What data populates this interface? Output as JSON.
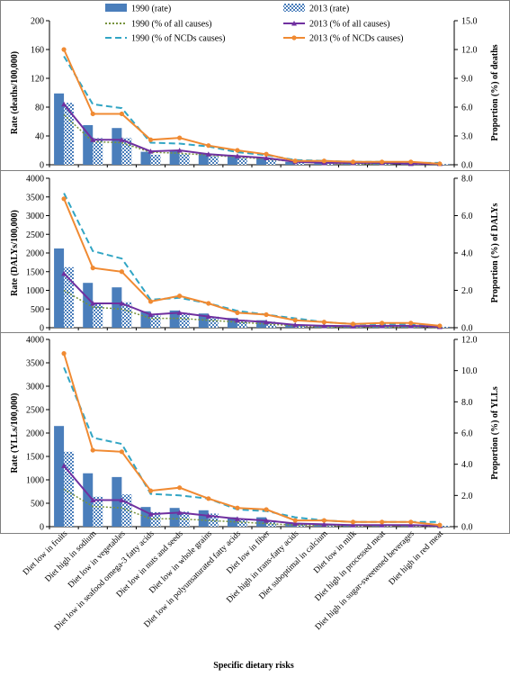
{
  "chart_data": {
    "type": "bar+line",
    "x_title": "Specific dietary risks",
    "categories": [
      "Diet low in fruits",
      "Diet high in sodium",
      "Diet low in vegetables",
      "Diet low in seafood omega-3 fatty acids",
      "Diet low in nuts and seeds",
      "Diet low in whole grains",
      "Diet low in polyunsaturated fatty acids",
      "Diet low in fiber",
      "Diet high in trans-fatty acids",
      "Diet suboptimal in calcium",
      "Diet low in milk",
      "Diet high in processed meat",
      "Diet high in sugar-sweetened beverages",
      "Diet high in red meat"
    ],
    "legend": {
      "rate_1990": "1990 (rate)",
      "rate_2013": "2013 (rate)",
      "all_1990": "1990 (% of all causes)",
      "all_2013": "2013 (% of all causes)",
      "ncd_1990": "1990 (% of NCDs causes)",
      "ncd_2013": "2013 (% of NCDs causes)"
    },
    "colors": {
      "bar_1990": "#4a7ebb",
      "bar_2013": "#4a7ebb",
      "all_1990": "#77933c",
      "all_2013": "#7030a0",
      "ncd_1990": "#31a5c4",
      "ncd_2013": "#f08a32"
    },
    "panels": [
      {
        "name": "deaths",
        "ylabel_left": "Rate (deaths/100,000)",
        "ylabel_right": "Proportion (%) of deaths",
        "ylim_left": [
          0,
          200
        ],
        "ylim_right": [
          0,
          15
        ],
        "yticks_left": [
          "0",
          "40",
          "80",
          "120",
          "160",
          "200"
        ],
        "yticks_right": [
          "0.0",
          "3.0",
          "6.0",
          "9.0",
          "12.0",
          "15.0"
        ],
        "rate_1990": [
          99,
          55,
          51,
          18,
          19,
          16,
          12,
          10,
          4,
          3,
          2,
          2,
          2,
          1
        ],
        "rate_2013": [
          86,
          37,
          37,
          14,
          15,
          12,
          10,
          8,
          3,
          3,
          2,
          2,
          2,
          1
        ],
        "all_1990": [
          5.2,
          2.4,
          2.3,
          1.3,
          1.2,
          1.0,
          0.8,
          0.6,
          0.3,
          0.2,
          0.1,
          0.1,
          0.1,
          0.1
        ],
        "all_2013": [
          6.3,
          2.6,
          2.6,
          1.4,
          1.5,
          1.1,
          0.9,
          0.7,
          0.3,
          0.2,
          0.2,
          0.2,
          0.1,
          0.1
        ],
        "ncd_1990": [
          11.3,
          6.3,
          5.9,
          2.3,
          2.2,
          1.9,
          1.3,
          1.0,
          0.5,
          0.4,
          0.3,
          0.3,
          0.2,
          0.2
        ],
        "ncd_2013": [
          12.0,
          5.3,
          5.3,
          2.6,
          2.8,
          2.0,
          1.5,
          1.1,
          0.4,
          0.4,
          0.3,
          0.3,
          0.3,
          0.1
        ]
      },
      {
        "name": "dalys",
        "ylabel_left": "Rate (DALYs/100,000)",
        "ylabel_right": "Proportion (%) of DALYs",
        "ylim_left": [
          0,
          4000
        ],
        "ylim_right": [
          0,
          8
        ],
        "yticks_left": [
          "0",
          "500",
          "1000",
          "1500",
          "2000",
          "2500",
          "3000",
          "3500",
          "4000"
        ],
        "yticks_right": [
          "0.0",
          "2.0",
          "4.0",
          "6.0",
          "8.0"
        ],
        "rate_1990": [
          2120,
          1200,
          1080,
          440,
          460,
          380,
          260,
          200,
          100,
          60,
          40,
          50,
          50,
          25
        ],
        "rate_2013": [
          1620,
          660,
          680,
          330,
          400,
          300,
          210,
          160,
          80,
          60,
          40,
          50,
          50,
          25
        ],
        "all_1990": [
          2.0,
          1.1,
          1.0,
          0.5,
          0.5,
          0.4,
          0.3,
          0.2,
          0.1,
          0.05,
          0.05,
          0.05,
          0.05,
          0.03
        ],
        "all_2013": [
          2.9,
          1.3,
          1.3,
          0.7,
          0.8,
          0.6,
          0.4,
          0.3,
          0.15,
          0.1,
          0.08,
          0.1,
          0.1,
          0.05
        ],
        "ncd_1990": [
          7.2,
          4.1,
          3.7,
          1.5,
          1.6,
          1.3,
          0.9,
          0.7,
          0.5,
          0.3,
          0.2,
          0.2,
          0.2,
          0.05
        ],
        "ncd_2013": [
          6.9,
          3.2,
          3.0,
          1.4,
          1.7,
          1.3,
          0.8,
          0.7,
          0.4,
          0.3,
          0.2,
          0.25,
          0.25,
          0.1
        ]
      },
      {
        "name": "ylls",
        "ylabel_left": "Rate (YLLs/100,000)",
        "ylabel_right": "Proportion (%) of YLLs",
        "ylim_left": [
          0,
          4000
        ],
        "ylim_right": [
          0,
          12
        ],
        "yticks_left": [
          "0",
          "500",
          "1000",
          "1500",
          "2000",
          "2500",
          "3000",
          "3500",
          "4000"
        ],
        "yticks_right": [
          "0.0",
          "2.0",
          "4.0",
          "6.0",
          "8.0",
          "10.0",
          "12.0"
        ],
        "rate_1990": [
          2150,
          1140,
          1060,
          420,
          400,
          350,
          200,
          200,
          80,
          60,
          40,
          40,
          40,
          20
        ],
        "rate_2013": [
          1600,
          640,
          690,
          310,
          320,
          280,
          170,
          130,
          60,
          50,
          35,
          40,
          40,
          20
        ],
        "all_1990": [
          2.4,
          1.3,
          1.2,
          0.5,
          0.5,
          0.4,
          0.3,
          0.2,
          0.1,
          0.1,
          0.05,
          0.05,
          0.05,
          0.03
        ],
        "all_2013": [
          3.9,
          1.7,
          1.7,
          0.8,
          0.9,
          0.7,
          0.5,
          0.4,
          0.2,
          0.15,
          0.1,
          0.1,
          0.1,
          0.05
        ],
        "ncd_1990": [
          10.2,
          5.7,
          5.3,
          2.1,
          2.0,
          1.8,
          1.1,
          1.0,
          0.6,
          0.4,
          0.3,
          0.3,
          0.3,
          0.3
        ],
        "ncd_2013": [
          11.1,
          4.9,
          4.8,
          2.3,
          2.5,
          1.8,
          1.2,
          1.1,
          0.4,
          0.4,
          0.3,
          0.3,
          0.3,
          0.1
        ]
      }
    ]
  }
}
